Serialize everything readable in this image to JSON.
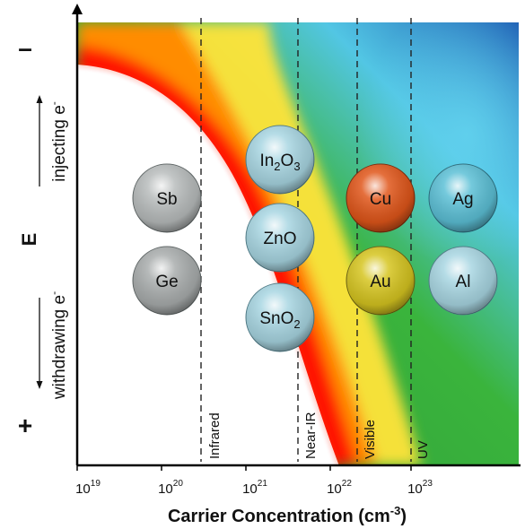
{
  "xaxis": {
    "label": "Carrier Concentration (cm",
    "label_unit_exp": "-3",
    "label_close": ")",
    "ticks": [
      {
        "base": "10",
        "exp": "19"
      },
      {
        "base": "10",
        "exp": "20"
      },
      {
        "base": "10",
        "exp": "21"
      },
      {
        "base": "10",
        "exp": "22"
      },
      {
        "base": "10",
        "exp": "23"
      }
    ]
  },
  "yaxis": {
    "label": "E",
    "top_sign": "–",
    "bottom_sign": "+",
    "upper_label": "injecting e",
    "upper_label_sup": "-",
    "lower_label": "withdrawing e",
    "lower_label_sup": "-"
  },
  "regions": [
    {
      "label": "Infrared"
    },
    {
      "label": "Near-IR"
    },
    {
      "label": "Visible"
    },
    {
      "label": "UV"
    }
  ],
  "materials": [
    {
      "id": "sb",
      "label": "Sb",
      "color": "#b8bcbc"
    },
    {
      "id": "ge",
      "label": "Ge",
      "color": "#a9adad"
    },
    {
      "id": "in2o3",
      "label": "In",
      "sub1": "2",
      "mid": "O",
      "sub2": "3",
      "color": "#a8d6e2"
    },
    {
      "id": "zno",
      "label": "ZnO",
      "color": "#a8d6e2"
    },
    {
      "id": "sno2",
      "label": "SnO",
      "sub1": "2",
      "color": "#a8d6e2"
    },
    {
      "id": "cu",
      "label": "Cu",
      "color": "#e0561a"
    },
    {
      "id": "au",
      "label": "Au",
      "color": "#d6c520"
    },
    {
      "id": "ag",
      "label": "Ag",
      "color": "#5cc0d6"
    },
    {
      "id": "al",
      "label": "Al",
      "color": "#a8d6e2"
    }
  ],
  "colors": {
    "red": "#ff1800",
    "orange": "#ff8c00",
    "yellow": "#f4ee1a",
    "green": "#3ab43c",
    "cyan": "#52c6e4",
    "blue": "#1f5fb4"
  }
}
